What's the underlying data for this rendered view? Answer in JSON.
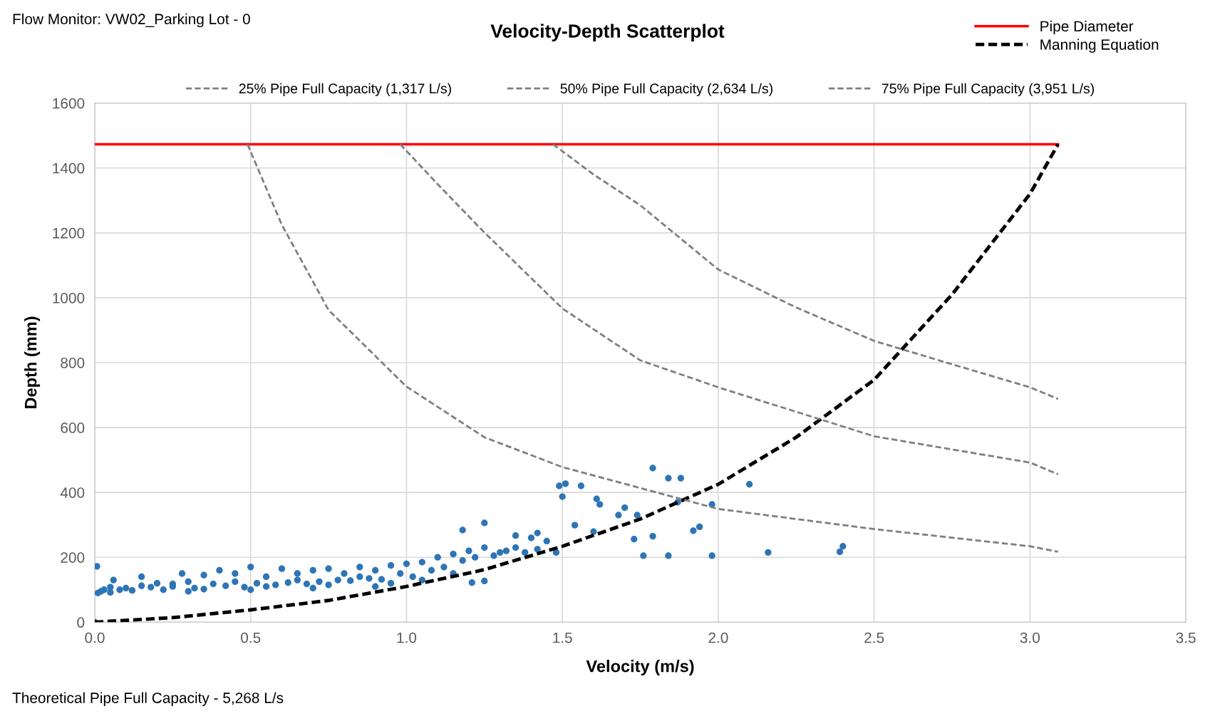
{
  "chart_data": {
    "type": "scatter",
    "title": "Velocity-Depth Scatterplot",
    "xlabel": "Velocity (m/s)",
    "ylabel": "Depth (mm)",
    "annotations": [
      "Flow Monitor: VW02_Parking Lot - 0",
      "Theoretical Pipe Full Capacity - 5,268 L/s"
    ],
    "xlim": [
      0,
      3.5
    ],
    "xticks": [
      {
        "value": 0,
        "label": "0.0"
      },
      {
        "value": 0.5,
        "label": "0.5"
      },
      {
        "value": 1,
        "label": "1.0"
      },
      {
        "value": 1.5,
        "label": "1.5"
      },
      {
        "value": 2,
        "label": "2.0"
      },
      {
        "value": 2.5,
        "label": "2.5"
      },
      {
        "value": 3,
        "label": "3.0"
      },
      {
        "value": 3.5,
        "label": "3.5"
      }
    ],
    "ylim": [
      0,
      1600
    ],
    "yticks": [
      0,
      200,
      400,
      600,
      800,
      1000,
      1200,
      1400,
      1600
    ],
    "grid": true,
    "legend": "top",
    "series": [
      {
        "color": "#2e75b6",
        "marker": "circle",
        "x": [
          0,
          0.007,
          0.01,
          0.02,
          0.03,
          0.05,
          0.06,
          0.08,
          0.1,
          0.12,
          0.15,
          0.18,
          0.2,
          0.22,
          0.25,
          0.28,
          0.3,
          0.32,
          0.35,
          0.38,
          0.4,
          0.42,
          0.45,
          0.48,
          0.5,
          0.52,
          0.55,
          0.58,
          0.6,
          0.62,
          0.65,
          0.68,
          0.7,
          0.72,
          0.75,
          0.78,
          0.8,
          0.82,
          0.85,
          0.88,
          0.9,
          0.92,
          0.95,
          0.98,
          1.0,
          1.02,
          1.05,
          1.08,
          1.1,
          1.12,
          1.15,
          1.18,
          1.2,
          1.22,
          1.25,
          1.28,
          1.3,
          1.32,
          1.35,
          1.38,
          1.4,
          1.42,
          1.45,
          1.48,
          0.05,
          0.15,
          0.25,
          0.35,
          0.45,
          0.55,
          0.65,
          0.75,
          0.85,
          0.95,
          0.3,
          0.5,
          0.7,
          0.9,
          1.05,
          1.15,
          1.21,
          1.25,
          1.18,
          1.25,
          1.35,
          1.42,
          1.54,
          1.6,
          1.49,
          1.51,
          1.56,
          1.5,
          1.61,
          1.62,
          1.7,
          1.68,
          1.74,
          1.79,
          1.73,
          1.79,
          1.84,
          1.88,
          2.1,
          1.98,
          1.87,
          2.4,
          2.39,
          2.16,
          1.98,
          1.84,
          1.76,
          1.94,
          1.92
        ],
        "values": [
          0,
          172,
          90,
          95,
          100,
          92,
          130,
          100,
          105,
          98,
          140,
          108,
          120,
          100,
          110,
          150,
          125,
          105,
          145,
          118,
          160,
          112,
          150,
          108,
          170,
          120,
          140,
          115,
          165,
          122,
          150,
          118,
          160,
          125,
          165,
          130,
          150,
          128,
          170,
          135,
          160,
          132,
          175,
          150,
          180,
          140,
          185,
          160,
          200,
          170,
          210,
          190,
          220,
          200,
          230,
          205,
          215,
          220,
          230,
          215,
          260,
          225,
          250,
          215,
          108,
          112,
          118,
          102,
          125,
          110,
          130,
          115,
          140,
          120,
          95,
          100,
          105,
          110,
          130,
          150,
          122,
          127,
          284,
          306,
          267,
          275,
          299,
          279,
          420,
          427,
          420,
          387,
          380,
          363,
          353,
          330,
          330,
          475,
          256,
          265,
          444,
          444,
          425,
          363,
          370,
          234,
          217,
          215,
          205,
          205,
          205,
          294,
          282
        ]
      },
      {
        "type": "line",
        "name": "Pipe Diameter",
        "color": "#ff0000",
        "line_style": "solid",
        "x": [
          0,
          3.09
        ],
        "values": [
          1473,
          1473
        ]
      },
      {
        "type": "line",
        "name": "Manning Equation",
        "color": "#000000",
        "line_style": "dashed",
        "x": [
          0,
          0.25,
          0.5,
          0.75,
          1.0,
          1.25,
          1.5,
          1.75,
          2.0,
          2.25,
          2.5,
          2.75,
          3.0,
          3.09
        ],
        "values": [
          0,
          14,
          38,
          67,
          110,
          162,
          234,
          318,
          425,
          570,
          747,
          1010,
          1320,
          1473
        ]
      },
      {
        "type": "line",
        "name": "25% Pipe Full Capacity (1,317 L/s)",
        "color": "#7f7f7f",
        "line_style": "dashed",
        "x": [
          0.49,
          0.6,
          0.75,
          1.0,
          1.25,
          1.5,
          2.0,
          2.5,
          3.0,
          3.09
        ],
        "values": [
          1473,
          1225,
          962,
          726,
          570,
          478,
          349,
          287,
          234,
          217
        ]
      },
      {
        "type": "line",
        "name": "50% Pipe Full Capacity (2,634 L/s)",
        "color": "#7f7f7f",
        "line_style": "dashed",
        "x": [
          0.98,
          1.1,
          1.25,
          1.5,
          1.75,
          2.0,
          2.5,
          3.0,
          3.09
        ],
        "values": [
          1473,
          1350,
          1201,
          967,
          807,
          724,
          573,
          492,
          456
        ]
      },
      {
        "type": "line",
        "name": "75% Pipe Full Capacity (3,951 L/s)",
        "color": "#7f7f7f",
        "line_style": "dashed",
        "x": [
          1.47,
          1.6,
          1.75,
          2.0,
          2.25,
          2.5,
          2.75,
          3.0,
          3.09
        ],
        "values": [
          1473,
          1380,
          1285,
          1087,
          970,
          867,
          795,
          724,
          688
        ]
      }
    ]
  }
}
